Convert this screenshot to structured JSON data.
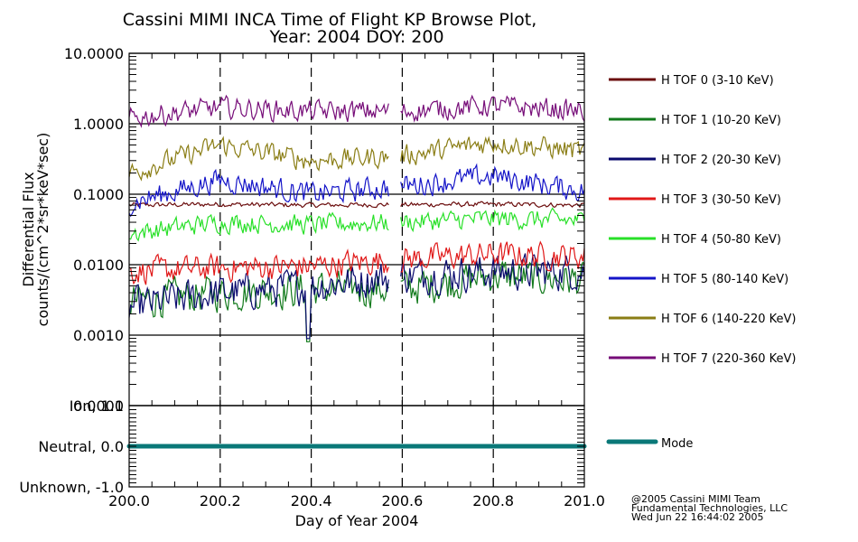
{
  "chart_data": [
    {
      "type": "line",
      "title": "Cassini MIMI INCA Time of Flight KP Browse Plot,",
      "subtitle": "Year: 2004 DOY: 200",
      "xlabel": "Day of Year 2004",
      "ylabel": "Differential Flux",
      "ylabel2": "counts/(cm^2*sr*keV*sec)",
      "yscale": "log",
      "xlim": [
        200.0,
        201.0
      ],
      "ylim": [
        0.0001,
        10.0
      ],
      "grid": true,
      "x_ticks": [
        200.0,
        200.2,
        200.4,
        200.6,
        200.8,
        201.0
      ],
      "x_tick_labels": [
        "200.0",
        "200.2",
        "200.4",
        "200.6",
        "200.8",
        "201.0"
      ],
      "y_ticks": [
        10.0,
        1.0,
        0.1,
        0.01,
        0.001,
        0.0001
      ],
      "y_tick_labels": [
        "10.0000",
        "1.0000",
        "0.1000",
        "0.0100",
        "0.0010",
        "0.0001"
      ],
      "data_gap": [
        200.57,
        200.595
      ],
      "legend_position": "right",
      "series": [
        {
          "name": "H TOF 0 (3-10 KeV)",
          "color": "#6b0d0d",
          "x": [
            200.0,
            200.2,
            200.4,
            200.6,
            200.8,
            201.0
          ],
          "values": [
            0.07,
            0.072,
            0.07,
            0.071,
            0.072,
            0.07
          ]
        },
        {
          "name": "H TOF 1 (10-20 KeV)",
          "color": "#127a1c",
          "x": [
            200.0,
            200.2,
            200.4,
            200.6,
            200.8,
            201.0
          ],
          "values": [
            0.003,
            0.004,
            0.0045,
            0.0045,
            0.007,
            0.006
          ]
        },
        {
          "name": "H TOF 2 (20-30 KeV)",
          "color": "#0a0a6e",
          "x": [
            200.0,
            200.2,
            200.4,
            200.6,
            200.8,
            201.0
          ],
          "values": [
            0.0025,
            0.004,
            0.005,
            0.007,
            0.008,
            0.008
          ]
        },
        {
          "name": "H TOF 3 (30-50 KeV)",
          "color": "#e01818",
          "x": [
            200.0,
            200.2,
            200.4,
            200.6,
            200.8,
            201.0
          ],
          "values": [
            0.008,
            0.009,
            0.0095,
            0.012,
            0.014,
            0.013
          ]
        },
        {
          "name": "H TOF 4 (50-80 KeV)",
          "color": "#28e028",
          "x": [
            200.0,
            200.2,
            200.4,
            200.6,
            200.8,
            201.0
          ],
          "values": [
            0.028,
            0.04,
            0.037,
            0.04,
            0.045,
            0.042
          ]
        },
        {
          "name": "H TOF 5 (80-140 KeV)",
          "color": "#1414c8",
          "x": [
            200.0,
            200.2,
            200.4,
            200.6,
            200.8,
            201.0
          ],
          "values": [
            0.075,
            0.16,
            0.1,
            0.13,
            0.18,
            0.11
          ]
        },
        {
          "name": "H TOF 6 (140-220 KeV)",
          "color": "#8a7d14",
          "x": [
            200.0,
            200.2,
            200.4,
            200.6,
            200.8,
            201.0
          ],
          "values": [
            0.2,
            0.5,
            0.3,
            0.35,
            0.55,
            0.4
          ]
        },
        {
          "name": "H TOF 7 (220-360 KeV)",
          "color": "#760c78",
          "x": [
            200.0,
            200.2,
            200.4,
            200.6,
            200.8,
            201.0
          ],
          "values": [
            1.2,
            1.7,
            1.5,
            1.5,
            1.8,
            1.5
          ]
        }
      ]
    },
    {
      "type": "line",
      "xlim": [
        200.0,
        201.0
      ],
      "ylim": [
        -1.0,
        1.0
      ],
      "y_ticks": [
        1.0,
        0.0,
        -1.0
      ],
      "y_tick_labels": [
        "Ion, 1.0",
        "Neutral, 0.0",
        "Unknown, -1.0"
      ],
      "legend_position": "right",
      "series": [
        {
          "name": "Mode",
          "color": "#0a7878",
          "x": [
            200.0,
            201.0
          ],
          "values": [
            0.0,
            0.0
          ]
        }
      ]
    }
  ],
  "footer": {
    "line1": "@2005 Cassini MIMI Team",
    "line2": "Fundamental Technologies, LLC",
    "line3": "Wed Jun 22 16:44:02 2005"
  }
}
